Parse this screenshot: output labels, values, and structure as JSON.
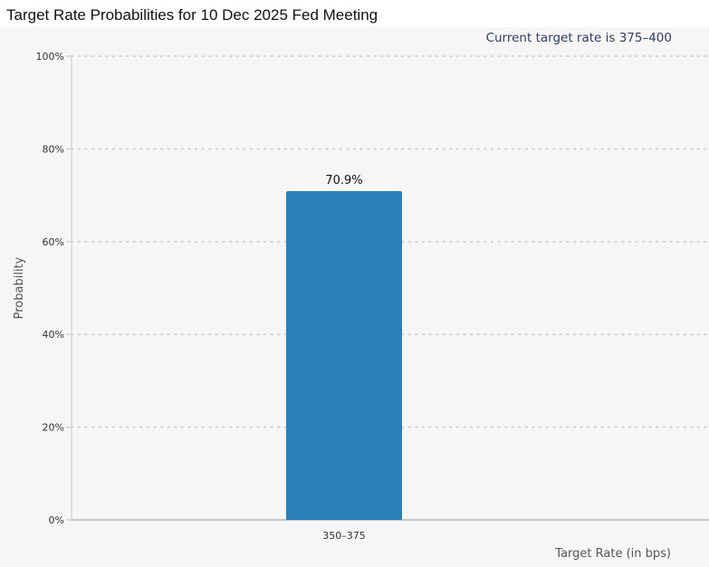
{
  "chart_data": {
    "type": "bar",
    "title": "Target Rate Probabilities for 10 Dec 2025 Fed Meeting",
    "subtitle": "Current target rate is 375–400",
    "xlabel": "Target Rate (in bps)",
    "ylabel": "Probability",
    "categories": [
      "350–375"
    ],
    "values": [
      70.9
    ],
    "data_labels": [
      "70.9%"
    ],
    "ylim": [
      0,
      100
    ],
    "yticks": [
      0,
      20,
      40,
      60,
      80,
      100
    ],
    "ytick_labels": [
      "0%",
      "20%",
      "40%",
      "60%",
      "80%",
      "100%"
    ],
    "grid": true,
    "legend": "none",
    "colors": {
      "bar": "#2a80b9",
      "grid": "#cccccc",
      "background": "#f6f6f6"
    }
  }
}
